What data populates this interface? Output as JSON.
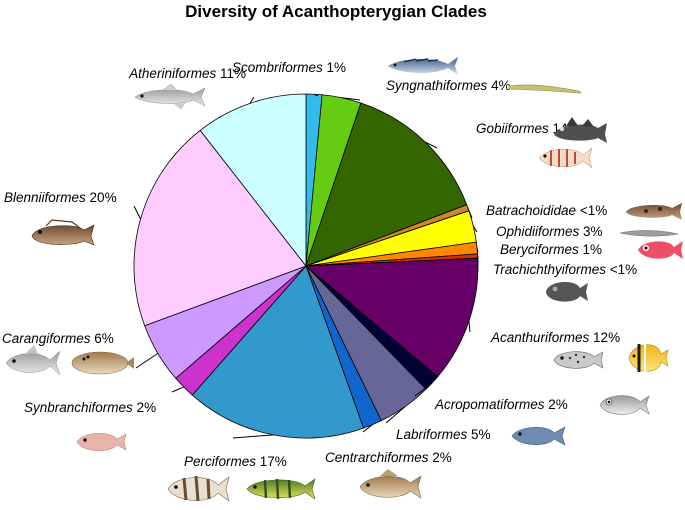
{
  "chart_data": {
    "type": "pie",
    "title": "Diversity of Acanthopterygian Clades",
    "start_angle_deg": 0,
    "direction": "clockwise",
    "slices": [
      {
        "name": "Scombriformes",
        "pct_label": "1%",
        "value": 1.5,
        "color": "#33bbee"
      },
      {
        "name": "Syngnathiformes",
        "pct_label": "4%",
        "value": 3.7,
        "color": "#66cc11"
      },
      {
        "name": "Gobiiformes",
        "pct_label": "14%",
        "value": 14.1,
        "color": "#336600"
      },
      {
        "name": "Batrachoididae",
        "pct_label": "<1%",
        "value": 0.6,
        "color": "#cc8822"
      },
      {
        "name": "Ophidiiformes",
        "pct_label": "3%",
        "value": 3.0,
        "color": "#ffff00"
      },
      {
        "name": "Beryciformes",
        "pct_label": "1%",
        "value": 1.1,
        "color": "#ff8800"
      },
      {
        "name": "Trachichthyiformes",
        "pct_label": "<1%",
        "value": 0.4,
        "color": "#cc3300"
      },
      {
        "name": "Acanthuriformes",
        "pct_label": "12%",
        "value": 11.9,
        "color": "#660066"
      },
      {
        "name": "Acropomatiformes",
        "pct_label": "2%",
        "value": 1.6,
        "color": "#000033"
      },
      {
        "name": "Labriformes",
        "pct_label": "5%",
        "value": 5.1,
        "color": "#666699"
      },
      {
        "name": "Centrarchiformes",
        "pct_label": "2%",
        "value": 1.8,
        "color": "#1166cc"
      },
      {
        "name": "Perciformes",
        "pct_label": "17%",
        "value": 17.0,
        "color": "#3399cc"
      },
      {
        "name": "Synbranchiformes",
        "pct_label": "2%",
        "value": 2.2,
        "color": "#cc33cc"
      },
      {
        "name": "Carangiformes",
        "pct_label": "6%",
        "value": 5.7,
        "color": "#cc99ff"
      },
      {
        "name": "Blenniiformes",
        "pct_label": "20%",
        "value": 20.2,
        "color": "#ffccff"
      },
      {
        "name": "Atheriniformes",
        "pct_label": "11%",
        "value": 10.6,
        "color": "#ccffff"
      }
    ]
  }
}
